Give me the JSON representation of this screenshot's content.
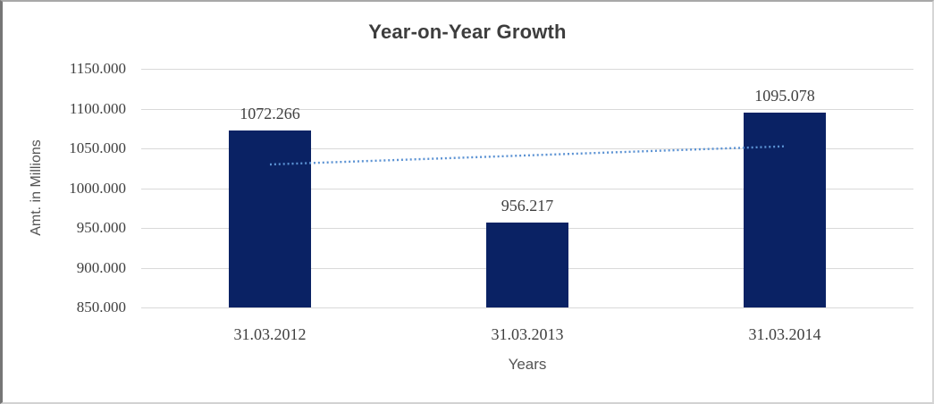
{
  "chart_data": {
    "type": "bar",
    "title": "Year-on-Year Growth",
    "xlabel": "Years",
    "ylabel": "Amt. in Millions",
    "categories": [
      "31.03.2012",
      "31.03.2013",
      "31.03.2014"
    ],
    "values": [
      1072.266,
      956.217,
      1095.078
    ],
    "value_labels": [
      "1072.266",
      "956.217",
      "1095.078"
    ],
    "yticks": [
      {
        "label": "1150.000",
        "value": 1150
      },
      {
        "label": "1100.000",
        "value": 1100
      },
      {
        "label": "1050.000",
        "value": 1050
      },
      {
        "label": "1000.000",
        "value": 1000
      },
      {
        "label": "950.000",
        "value": 950
      },
      {
        "label": "900.000",
        "value": 900
      },
      {
        "label": "850.000",
        "value": 850
      }
    ],
    "ylim": [
      850,
      1150
    ],
    "grid": true,
    "legend": "none",
    "trendline": {
      "type": "linear",
      "style": "dotted"
    },
    "colors": {
      "bar": "#0a2264",
      "trendline": "#5b92d3",
      "gridline": "#d9d9d9",
      "title_text": "#3d3d3d",
      "tick_text": "#404040",
      "axis_title_text": "#545454"
    }
  }
}
